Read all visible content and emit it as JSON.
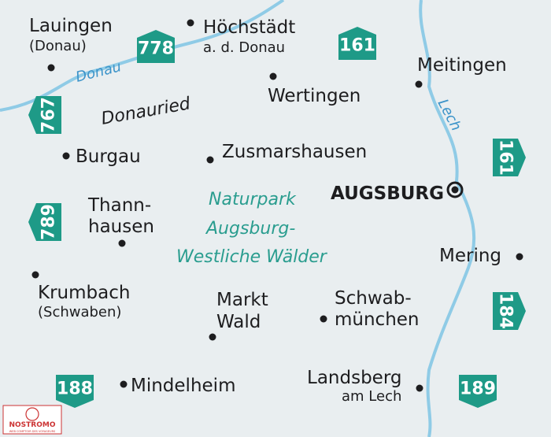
{
  "places": [
    {
      "name": "Lauingen",
      "sub": "(Donau)"
    },
    {
      "name": "Höchstädt",
      "sub": "a. d. Donau"
    },
    {
      "name": "Wertingen"
    },
    {
      "name": "Meitingen"
    },
    {
      "name": "Burgau"
    },
    {
      "name": "Zusmarshausen"
    },
    {
      "name": "AUGSBURG"
    },
    {
      "name": "Thann-",
      "sub": "hausen"
    },
    {
      "name": "Mering"
    },
    {
      "name": "Krumbach",
      "sub": "(Schwaben)"
    },
    {
      "name": "Markt",
      "sub": "Wald"
    },
    {
      "name": "Schwab-",
      "sub": "münchen"
    },
    {
      "name": "Mindelheim"
    },
    {
      "name": "Landsberg",
      "sub": "am Lech"
    }
  ],
  "rivers": [
    "Donau",
    "Lech"
  ],
  "region": "Donauried",
  "park": [
    "Naturpark",
    "Augsburg-",
    "Westliche Wälder"
  ],
  "sheets": [
    "778",
    "161",
    "767",
    "161",
    "789",
    "184",
    "188",
    "189"
  ],
  "logo": {
    "name": "NOSTROMO",
    "tagline": "WEB COMPTOIR DES VOYAGEURS"
  }
}
